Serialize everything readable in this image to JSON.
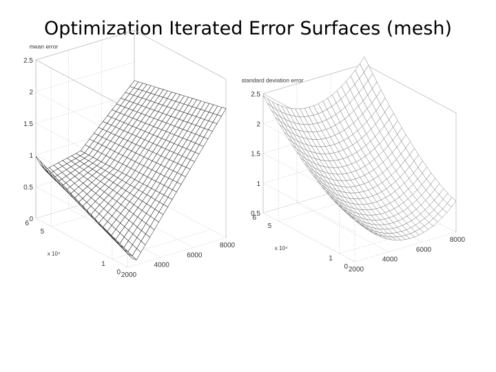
{
  "slide": {
    "title": "Optimization Iterated Error Surfaces (mesh)"
  },
  "chart_data": [
    {
      "type": "surface-mesh",
      "title": "mean error",
      "x_ticks": [
        "2000",
        "4000",
        "6000",
        "8000"
      ],
      "y_ticks": [
        "0",
        "1",
        "5",
        "6"
      ],
      "y_exponent": "x 10⁴",
      "z_ticks": [
        "0",
        "0.5",
        "1",
        "1.5",
        "2",
        "2.5"
      ],
      "xlim": [
        2000,
        8000
      ],
      "ylim": [
        0,
        6
      ],
      "zlim": [
        0,
        2.5
      ],
      "shape": "V-shaped valley with minimum near x=2400, rising to about 2.1 at the far edge",
      "min_z": 0.05,
      "max_z": 2.1
    },
    {
      "type": "surface-mesh",
      "title": "standard deviation error",
      "x_ticks": [
        "2000",
        "4000",
        "6000",
        "8000"
      ],
      "y_ticks": [
        "0",
        "1",
        "5",
        "6"
      ],
      "y_exponent": "x 10⁴",
      "z_ticks": [
        "0.5",
        "1",
        "1.5",
        "2",
        "2.5"
      ],
      "xlim": [
        2000,
        8000
      ],
      "ylim": [
        0,
        6
      ],
      "zlim": [
        0.5,
        2.5
      ],
      "shape": "smooth bowl-shaped surface, minimum about 0.6 near x=5000, rising to about 2.3 at the far corner",
      "min_z": 0.6,
      "max_z": 2.3
    }
  ]
}
